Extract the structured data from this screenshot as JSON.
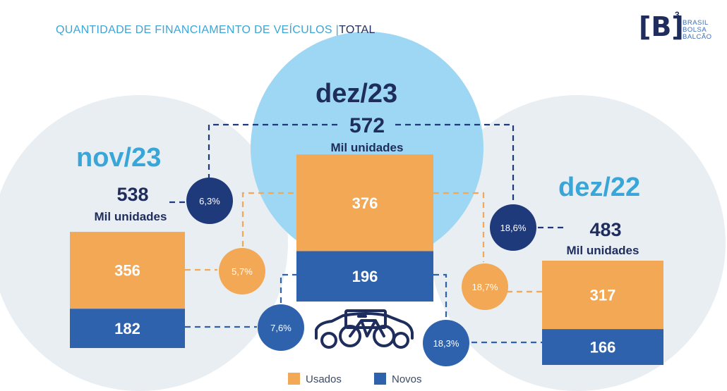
{
  "title": "QUANTIDADE DE FINANCIAMENTO DE VEÍCULOS",
  "title_separator": "|",
  "title_suffix": "TOTAL",
  "logo": {
    "mark": "[B]",
    "superscript": "3",
    "lines": [
      "BRASIL",
      "BOLSA",
      "BALCÃO"
    ]
  },
  "colors": {
    "usados": "#f2a854",
    "novos": "#2f62ad",
    "dark_circle": "#1f3a7a",
    "light_circle": "#e9eef3",
    "center_circle": "#9dd7f3",
    "title": "#3aa6d8",
    "navy": "#1f2d5c"
  },
  "legend": [
    {
      "label": "Usados",
      "color": "#f2a854"
    },
    {
      "label": "Novos",
      "color": "#2f62ad"
    }
  ],
  "chart_data": {
    "type": "bar",
    "stacked": true,
    "unit": "Mil unidades",
    "categories": [
      "nov/23",
      "dez/23",
      "dez/22"
    ],
    "totals": [
      538,
      572,
      483
    ],
    "series": [
      {
        "name": "Usados",
        "values": [
          356,
          376,
          317
        ]
      },
      {
        "name": "Novos",
        "values": [
          182,
          196,
          166
        ]
      }
    ],
    "variations": {
      "dez23_vs_nov23": {
        "total": "6,3%",
        "usados": "5,7%",
        "novos": "7,6%"
      },
      "dez23_vs_dez22": {
        "total": "18,6%",
        "usados": "18,7%",
        "novos": "18,3%"
      }
    }
  }
}
